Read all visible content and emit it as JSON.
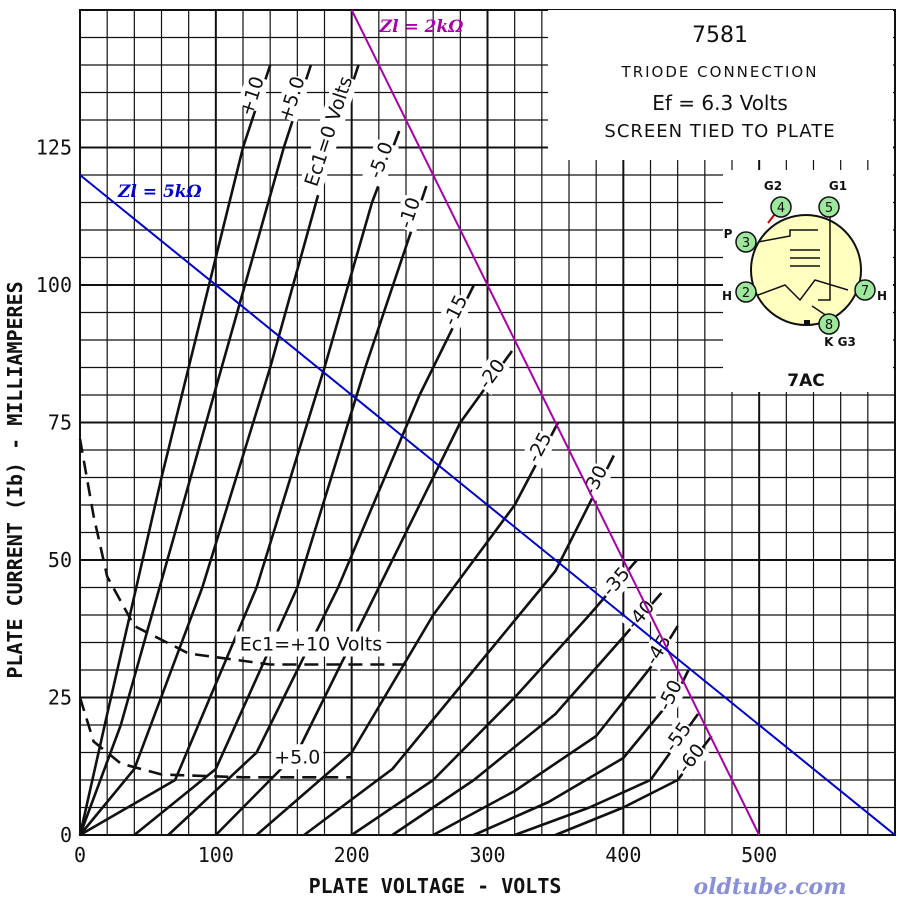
{
  "chart_data": {
    "type": "line",
    "title": "7581",
    "subtitle_lines": [
      "TRIODE CONNECTION",
      "Ef = 6.3 Volts",
      "SCREEN TIED TO PLATE"
    ],
    "xlabel": "PLATE VOLTAGE - VOLTS",
    "ylabel": "PLATE CURRENT (Ib) - MILLIAMPERES",
    "xlim": [
      0,
      600
    ],
    "ylim": [
      0,
      150
    ],
    "x_ticks": [
      0,
      100,
      200,
      300,
      400,
      500
    ],
    "y_ticks": [
      0,
      25,
      50,
      75,
      100,
      125
    ],
    "grid": true,
    "plate_curves": [
      {
        "label": "+10",
        "points": [
          [
            0,
            0
          ],
          [
            20,
            22
          ],
          [
            60,
            65
          ],
          [
            100,
            105
          ],
          [
            120,
            125
          ],
          [
            140,
            140
          ]
        ]
      },
      {
        "label": "+5.0",
        "points": [
          [
            0,
            0
          ],
          [
            30,
            20
          ],
          [
            70,
            55
          ],
          [
            110,
            90
          ],
          [
            150,
            125
          ],
          [
            170,
            140
          ]
        ]
      },
      {
        "label": "Ec1=0 Volts",
        "points": [
          [
            0,
            0
          ],
          [
            40,
            12
          ],
          [
            90,
            45
          ],
          [
            140,
            85
          ],
          [
            185,
            125
          ],
          [
            205,
            140
          ]
        ]
      },
      {
        "label": "-5.0",
        "points": [
          [
            0,
            0
          ],
          [
            70,
            10
          ],
          [
            130,
            45
          ],
          [
            180,
            85
          ],
          [
            215,
            115
          ],
          [
            235,
            128
          ]
        ]
      },
      {
        "label": "-10",
        "points": [
          [
            40,
            0
          ],
          [
            100,
            12
          ],
          [
            160,
            45
          ],
          [
            210,
            85
          ],
          [
            255,
            118
          ]
        ]
      },
      {
        "label": "-15",
        "points": [
          [
            65,
            0
          ],
          [
            130,
            15
          ],
          [
            190,
            45
          ],
          [
            250,
            80
          ],
          [
            290,
            100
          ]
        ]
      },
      {
        "label": "-20",
        "points": [
          [
            100,
            0
          ],
          [
            160,
            15
          ],
          [
            220,
            45
          ],
          [
            280,
            75
          ],
          [
            318,
            88
          ]
        ]
      },
      {
        "label": "-25",
        "points": [
          [
            130,
            0
          ],
          [
            200,
            15
          ],
          [
            260,
            40
          ],
          [
            320,
            60
          ],
          [
            352,
            75
          ]
        ]
      },
      {
        "label": "-30",
        "points": [
          [
            165,
            0
          ],
          [
            230,
            12
          ],
          [
            290,
            30
          ],
          [
            350,
            48
          ],
          [
            393,
            69
          ]
        ]
      },
      {
        "label": "-35",
        "points": [
          [
            200,
            0
          ],
          [
            260,
            10
          ],
          [
            320,
            25
          ],
          [
            375,
            40
          ],
          [
            410,
            50
          ]
        ]
      },
      {
        "label": "-40",
        "points": [
          [
            230,
            0
          ],
          [
            290,
            10
          ],
          [
            350,
            22
          ],
          [
            400,
            36
          ],
          [
            428,
            44
          ]
        ]
      },
      {
        "label": "-45",
        "points": [
          [
            260,
            0
          ],
          [
            320,
            8
          ],
          [
            380,
            18
          ],
          [
            425,
            32
          ],
          [
            440,
            38
          ]
        ]
      },
      {
        "label": "-50",
        "points": [
          [
            290,
            0
          ],
          [
            345,
            6
          ],
          [
            400,
            14
          ],
          [
            440,
            26
          ],
          [
            448,
            30
          ]
        ]
      },
      {
        "label": "-55",
        "points": [
          [
            320,
            0
          ],
          [
            375,
            5
          ],
          [
            420,
            10
          ],
          [
            455,
            22
          ]
        ]
      },
      {
        "label": "-60",
        "points": [
          [
            350,
            0
          ],
          [
            400,
            5
          ],
          [
            440,
            10
          ],
          [
            465,
            18
          ]
        ]
      }
    ],
    "dashed_curves": [
      {
        "label": "Ec1=+10 Volts",
        "points": [
          [
            0,
            72
          ],
          [
            10,
            58
          ],
          [
            20,
            47
          ],
          [
            40,
            38
          ],
          [
            80,
            33
          ],
          [
            140,
            31
          ],
          [
            240,
            31
          ]
        ]
      },
      {
        "label": "+5.0",
        "points": [
          [
            0,
            25
          ],
          [
            10,
            17
          ],
          [
            30,
            13
          ],
          [
            60,
            11
          ],
          [
            120,
            10.5
          ],
          [
            200,
            10.5
          ]
        ]
      }
    ],
    "load_lines": [
      {
        "name": "Zl = 2kΩ",
        "color": "#aa00aa",
        "points": [
          [
            200,
            150
          ],
          [
            500,
            0
          ]
        ]
      },
      {
        "name": "Zl = 5kΩ",
        "color": "#0000cc",
        "points": [
          [
            0,
            120
          ],
          [
            600,
            0
          ]
        ]
      }
    ],
    "pin_diagram": {
      "base": "7AC",
      "pins": [
        {
          "num": "2",
          "label": "H"
        },
        {
          "num": "3",
          "label": "P"
        },
        {
          "num": "4",
          "label": "G2"
        },
        {
          "num": "5",
          "label": "G1"
        },
        {
          "num": "7",
          "label": "H"
        },
        {
          "num": "8",
          "label": "K G3"
        }
      ]
    },
    "watermark": "oldtube.com"
  }
}
